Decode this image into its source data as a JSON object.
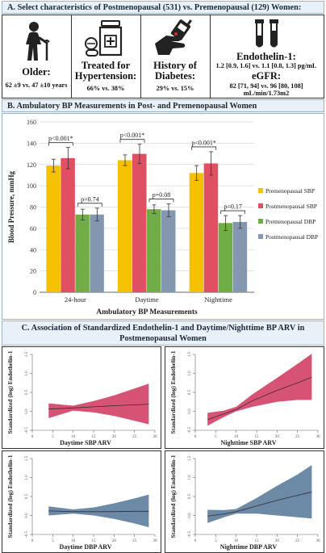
{
  "section_a": {
    "title": "A. Select characteristics of Postmenopausal (531) vs. Premenopausal (129) Women:",
    "cells": [
      {
        "icon": "elderly-woman-icon",
        "heading": "Older:",
        "detail": "62 ±9 vs. 47 ±10 years"
      },
      {
        "icon": "medication-icon",
        "heading": "Treated for Hypertension:",
        "heading_lines": [
          "Treated for",
          "Hypertension:"
        ],
        "detail": "66% vs. 38%"
      },
      {
        "icon": "glucose-meter-icon",
        "heading": "History of Diabetes:",
        "heading_lines": [
          "History of",
          "Diabetes:"
        ],
        "detail": "29% vs. 15%"
      },
      {
        "icon": "blood-tubes-icon",
        "heading": "Endothelin-1:",
        "detail": "1.2 [0.9, 1.6] vs. 1.1 [0.8, 1.3] pg/mL",
        "heading2": "eGFR:",
        "detail2_lines": [
          "82 [71, 94] vs. 96 [80, 108]",
          "mL/min/1.73m2"
        ]
      }
    ]
  },
  "section_b": {
    "title": "B. Ambulatory BP Measurements in Post- and Premenopausal Women"
  },
  "section_c": {
    "title_lines": [
      "C. Association of Standardized Endothelin-1 and Daytime/Nighttime BP ARV in",
      "Postmenopausal Women"
    ]
  },
  "colors": {
    "pre_sbp": "#f5c000",
    "post_sbp": "#e05062",
    "pre_dbp": "#70ad47",
    "post_dbp": "#8497b0",
    "band_pink": "#d2446a",
    "band_blue": "#5f7f9e"
  },
  "chart_data": [
    {
      "type": "bar",
      "title": "",
      "xlabel": "Ambulatory BP Measurements",
      "ylabel": "Blood Pressure, mmHg",
      "ylim": [
        0,
        160
      ],
      "yticks": [
        "0",
        "20",
        "40",
        "60",
        "80",
        "100",
        "120",
        "140",
        "160"
      ],
      "categories": [
        "24-hour",
        "Daytime",
        "Nighttime"
      ],
      "legend_position": "right",
      "series": [
        {
          "name": "Premenopausal SBP",
          "color": "#f5c000",
          "values": [
            119,
            124,
            112
          ],
          "err": [
            6,
            5,
            7
          ]
        },
        {
          "name": "Postmenopausal SBP",
          "color": "#e05062",
          "values": [
            126,
            130,
            121
          ],
          "err": [
            10,
            9,
            11
          ]
        },
        {
          "name": "Premenopausal DBP",
          "color": "#70ad47",
          "values": [
            73,
            78,
            65
          ],
          "err": [
            5,
            4,
            7
          ]
        },
        {
          "name": "Postmenopausal DBP",
          "color": "#8497b0",
          "values": [
            73,
            77,
            66
          ],
          "err": [
            6,
            6,
            6
          ]
        }
      ],
      "annotations": [
        {
          "text": "p<0.001*",
          "category": "24-hour",
          "pair": "SBP"
        },
        {
          "text": "p=0.74",
          "category": "24-hour",
          "pair": "DBP"
        },
        {
          "text": "p<0.001*",
          "category": "Daytime",
          "pair": "SBP"
        },
        {
          "text": "p=0.08",
          "category": "Daytime",
          "pair": "DBP"
        },
        {
          "text": "p<0.001*",
          "category": "Nighttime",
          "pair": "SBP"
        },
        {
          "text": "p=0.17",
          "category": "Nighttime",
          "pair": "DBP"
        }
      ]
    },
    {
      "type": "line",
      "xlabel": "Daytime SBP ARV",
      "ylabel": "Standardized (log) Endothelin-1",
      "xlim": [
        0,
        30
      ],
      "ylim": [
        -0.5,
        1.5
      ],
      "xticks": [
        "0",
        "5",
        "10",
        "15",
        "20",
        "25",
        "30"
      ],
      "yticks": [
        "-0.5",
        "0.0",
        "0.5",
        "1.0",
        "1.5"
      ],
      "color": "#d2446a",
      "x": [
        4,
        10,
        15,
        20,
        25,
        28.5
      ],
      "y": [
        0.06,
        0.09,
        0.12,
        0.15,
        0.17,
        0.19
      ],
      "lower": [
        -0.18,
        0.02,
        -0.03,
        -0.12,
        -0.25,
        -0.34
      ],
      "upper": [
        0.21,
        0.15,
        0.27,
        0.42,
        0.6,
        0.73
      ]
    },
    {
      "type": "line",
      "xlabel": "Nighttime SBP ARV",
      "ylabel": "Standardized (log) Endothelin-1",
      "xlim": [
        0,
        30
      ],
      "ylim": [
        -0.5,
        1.5
      ],
      "xticks": [
        "0",
        "5",
        "10",
        "15",
        "20",
        "25",
        "30"
      ],
      "yticks": [
        "-0.5",
        "0.0",
        "0.5",
        "1.0",
        "1.5"
      ],
      "color": "#d2446a",
      "x": [
        3,
        7,
        10,
        14,
        20,
        25,
        28.5
      ],
      "y": [
        -0.22,
        -0.07,
        0.05,
        0.28,
        0.55,
        0.75,
        0.9
      ],
      "lower": [
        -0.38,
        -0.15,
        0.0,
        0.12,
        0.25,
        0.3,
        0.3
      ],
      "upper": [
        -0.04,
        0.02,
        0.12,
        0.45,
        0.88,
        1.25,
        1.52
      ]
    },
    {
      "type": "line",
      "xlabel": "Daytime DBP ARV",
      "ylabel": "Standardized (log) Endothelin-1",
      "xlim": [
        0,
        30
      ],
      "ylim": [
        -0.5,
        1.5
      ],
      "xticks": [
        "0",
        "5",
        "10",
        "15",
        "20",
        "25",
        "30"
      ],
      "yticks": [
        "-0.5",
        "0.0",
        "0.5",
        "1.0",
        "1.5"
      ],
      "color": "#5f7f9e",
      "x": [
        4,
        10,
        15,
        20,
        25,
        28.5
      ],
      "y": [
        0.12,
        0.1,
        0.1,
        0.1,
        0.11,
        0.11
      ],
      "lower": [
        0.0,
        0.05,
        0.0,
        -0.09,
        -0.21,
        -0.31
      ],
      "upper": [
        0.24,
        0.16,
        0.21,
        0.32,
        0.45,
        0.55
      ]
    },
    {
      "type": "line",
      "xlabel": "Nighttime DBP ARV",
      "ylabel": "Standardized (log) Endothelin-1",
      "xlim": [
        0,
        30
      ],
      "ylim": [
        -0.5,
        1.5
      ],
      "xticks": [
        "0",
        "5",
        "10",
        "15",
        "20",
        "25",
        "30"
      ],
      "yticks": [
        "-0.5",
        "0.0",
        "0.5",
        "1.0",
        "1.5"
      ],
      "color": "#5f7f9e",
      "x": [
        3,
        7,
        10,
        15,
        20,
        25,
        28.5
      ],
      "y": [
        -0.02,
        0.04,
        0.1,
        0.25,
        0.4,
        0.53,
        0.62
      ],
      "lower": [
        -0.2,
        -0.05,
        0.05,
        0.05,
        0.0,
        -0.05,
        -0.08
      ],
      "upper": [
        0.15,
        0.14,
        0.17,
        0.46,
        0.78,
        1.08,
        1.33
      ]
    }
  ]
}
